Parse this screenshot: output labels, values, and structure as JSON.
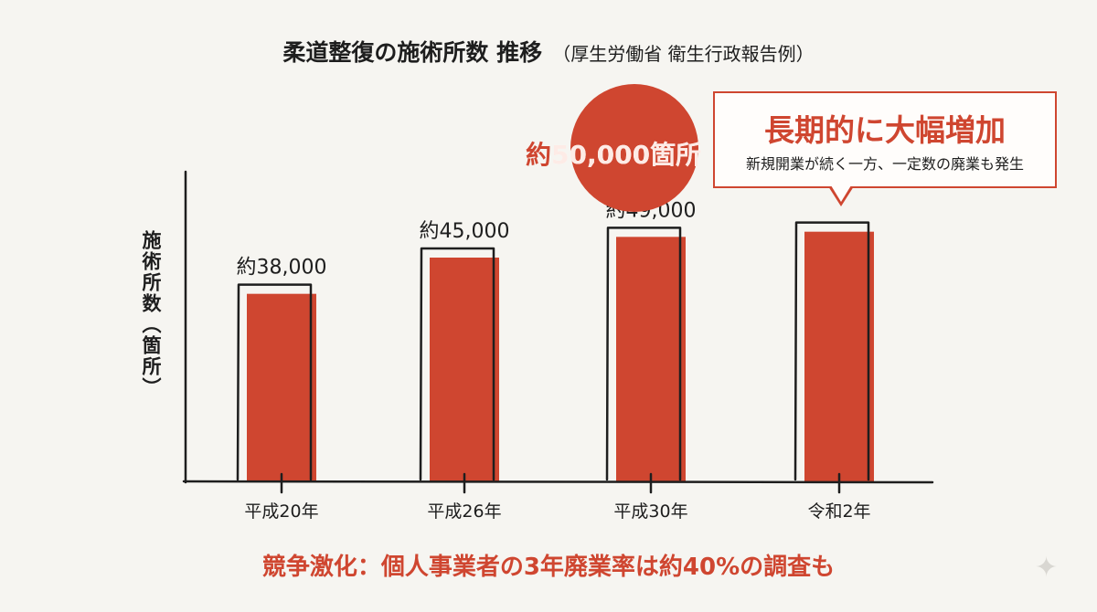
{
  "title": {
    "main": "柔道整復の施術所数 推移",
    "sub": "（厚生労働省 衛生行政報告例）"
  },
  "callout": {
    "value_prefix": "約",
    "value": "50,000",
    "value_suffix": "箇所",
    "headline": "長期的に大幅増加",
    "detail": "新規開業が続く一方、一定数の廃業も発生"
  },
  "footnote": "競争激化：個人事業者の3年廃業率は約40%の調査も",
  "colors": {
    "bar": "#cf4630",
    "accent": "#cf4630",
    "axis": "#1e1e1e"
  },
  "chart_data": {
    "type": "bar",
    "title": "柔道整復の施術所数 推移",
    "ylabel": "施術所数（箇所）",
    "xlabel": "",
    "categories": [
      "平成20年",
      "平成26年",
      "平成30年",
      "令和2年"
    ],
    "values": [
      38000,
      45000,
      49000,
      50000
    ],
    "value_labels": [
      "約38,000",
      "約45,000",
      "約49,000",
      ""
    ],
    "ylim": [
      0,
      60000
    ],
    "grid": false,
    "legend": "none"
  }
}
